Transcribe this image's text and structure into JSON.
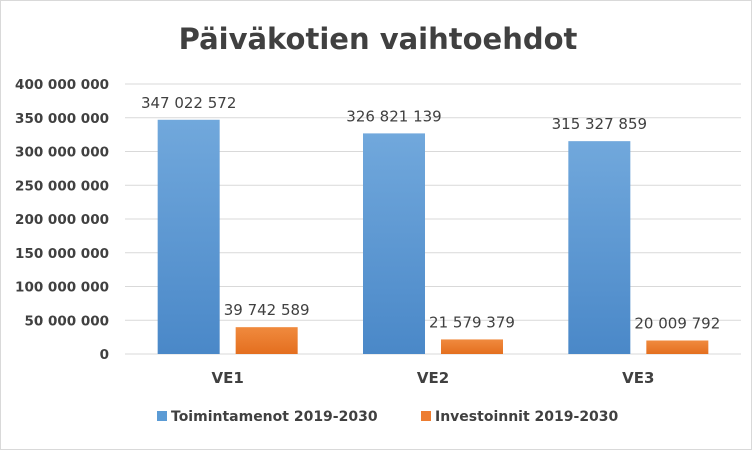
{
  "chart_data": {
    "type": "bar",
    "title": "Päiväkotien vaihtoehdot",
    "xlabel": "",
    "ylabel": "",
    "categories": [
      "VE1",
      "VE2",
      "VE3"
    ],
    "ylim": [
      0,
      400000000
    ],
    "yticks": [
      0,
      50000000,
      100000000,
      150000000,
      200000000,
      250000000,
      300000000,
      350000000,
      400000000
    ],
    "ytick_labels": [
      "0",
      "50 000 000",
      "100 000 000",
      "150 000 000",
      "200 000 000",
      "250 000 000",
      "300 000 000",
      "350 000 000",
      "400 000 000"
    ],
    "grid": true,
    "legend_position": "bottom",
    "series": [
      {
        "name": "Toimintamenot 2019-2030",
        "color": "#5b9bd5",
        "values": [
          347022572,
          326821139,
          315327859
        ],
        "labels": [
          "347 022 572",
          "326 821 139",
          "315 327 859"
        ]
      },
      {
        "name": "Investoinnit 2019-2030",
        "color": "#ed7d31",
        "values": [
          39742589,
          21579379,
          20009792
        ],
        "labels": [
          "39 742 589",
          "21 579 379",
          "20 009 792"
        ]
      }
    ]
  }
}
